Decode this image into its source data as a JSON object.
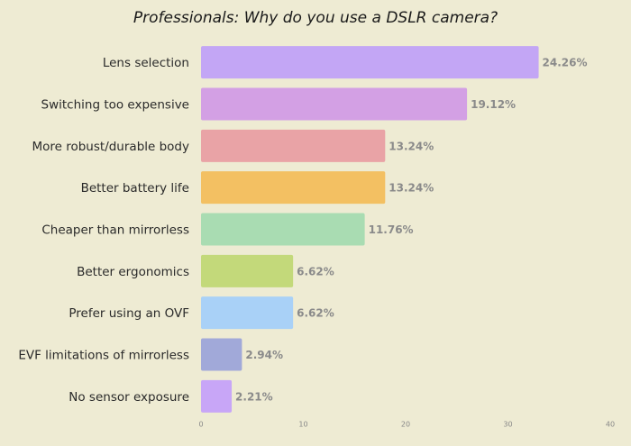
{
  "chart_data": {
    "type": "hbar",
    "title": "Professionals: Why do you use a DSLR camera?",
    "categories": [
      "Lens selection",
      "Switching too expensive",
      "More robust/durable body",
      "Better battery life",
      "Cheaper than mirrorless",
      "Better ergonomics",
      "Prefer using an OVF",
      "EVF limitations of mirrorless",
      "No sensor exposure"
    ],
    "values": [
      33,
      26,
      18,
      18,
      16,
      9,
      9,
      4,
      3
    ],
    "share_labels": [
      "24.26%",
      "19.12%",
      "13.24%",
      "13.24%",
      "11.76%",
      "6.62%",
      "6.62%",
      "2.94%",
      "2.21%"
    ],
    "colors": [
      "#c3a6f5",
      "#d3a0e4",
      "#e9a3a6",
      "#f3c062",
      "#a9dcb2",
      "#c3d97a",
      "#a9d1f7",
      "#a1a9d9",
      "#c8a6f7"
    ],
    "xlim": [
      0,
      40
    ],
    "xticks": [
      0,
      10,
      20,
      30,
      40
    ]
  }
}
